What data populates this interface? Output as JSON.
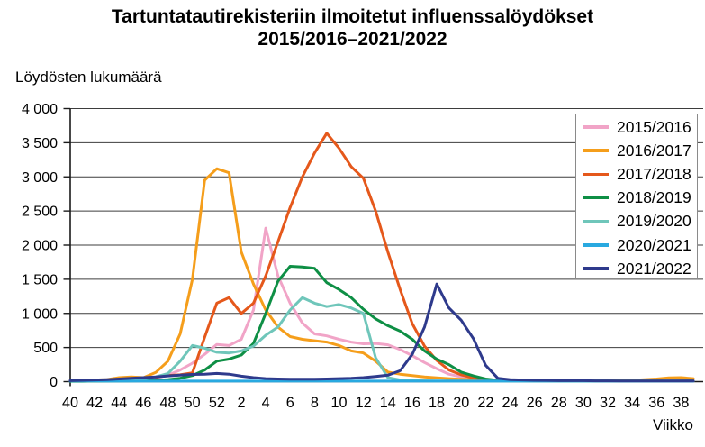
{
  "title": {
    "line1": "Tartuntatautirekisteriin ilmoitetut influenssalöydökset",
    "line2": "2015/2016–2021/2022"
  },
  "chart_data": {
    "type": "line",
    "title": "Tartuntatautirekisteriin ilmoitetut influenssalöydökset 2015/2016–2021/2022",
    "ylabel": "Löydösten lukumäärä",
    "xlabel": "Viikko",
    "ylim": [
      0,
      4000
    ],
    "ytick_interval": 500,
    "ytick_labels": [
      "0",
      "500",
      "1 000",
      "1 500",
      "2 000",
      "2 500",
      "3 000",
      "3 500",
      "4 000"
    ],
    "grid": "horizontal",
    "grid_color": "#3d3d3d",
    "axis_color": "#1a1a1a",
    "legend_position": "top-right",
    "weeks": [
      40,
      41,
      42,
      43,
      44,
      45,
      46,
      47,
      48,
      49,
      50,
      51,
      52,
      1,
      2,
      3,
      4,
      5,
      6,
      7,
      8,
      9,
      10,
      11,
      12,
      13,
      14,
      15,
      16,
      17,
      18,
      19,
      20,
      21,
      22,
      23,
      24,
      25,
      26,
      27,
      28,
      29,
      30,
      31,
      32,
      33,
      34,
      35,
      36,
      37,
      38,
      39
    ],
    "xtick_labels": [
      "40",
      "42",
      "44",
      "46",
      "48",
      "50",
      "52",
      "2",
      "4",
      "6",
      "8",
      "10",
      "12",
      "14",
      "16",
      "18",
      "20",
      "22",
      "24",
      "26",
      "28",
      "30",
      "32",
      "34",
      "36",
      "38"
    ],
    "series": [
      {
        "name": "2015/2016",
        "color": "#F1A4C7",
        "values": [
          10,
          10,
          15,
          15,
          20,
          25,
          35,
          55,
          95,
          170,
          270,
          400,
          545,
          530,
          620,
          1050,
          2250,
          1550,
          1150,
          860,
          700,
          670,
          620,
          580,
          555,
          560,
          540,
          470,
          380,
          280,
          190,
          110,
          70,
          45,
          30,
          20,
          15,
          12,
          10,
          10,
          8,
          8,
          8,
          8,
          8,
          8,
          8,
          8,
          8,
          8,
          8,
          8
        ]
      },
      {
        "name": "2016/2017",
        "color": "#F59E1B",
        "values": [
          15,
          20,
          25,
          30,
          60,
          70,
          60,
          135,
          300,
          700,
          1500,
          2950,
          3120,
          3060,
          1900,
          1430,
          1050,
          800,
          660,
          620,
          600,
          580,
          530,
          450,
          420,
          300,
          140,
          110,
          90,
          70,
          55,
          45,
          35,
          30,
          25,
          20,
          18,
          15,
          15,
          12,
          12,
          10,
          10,
          10,
          12,
          15,
          20,
          30,
          40,
          55,
          60,
          45
        ]
      },
      {
        "name": "2017/2018",
        "color": "#E5581B",
        "values": [
          8,
          10,
          12,
          15,
          20,
          30,
          45,
          65,
          90,
          100,
          130,
          650,
          1150,
          1230,
          1000,
          1150,
          1550,
          2050,
          2550,
          3000,
          3350,
          3640,
          3420,
          3150,
          2980,
          2500,
          1900,
          1350,
          850,
          520,
          310,
          170,
          100,
          55,
          30,
          20,
          15,
          12,
          10,
          10,
          10,
          8,
          8,
          8,
          8,
          8,
          8,
          8,
          10,
          10,
          12,
          15
        ]
      },
      {
        "name": "2018/2019",
        "color": "#0E8F45",
        "values": [
          5,
          5,
          8,
          8,
          10,
          12,
          15,
          20,
          30,
          50,
          90,
          170,
          300,
          330,
          390,
          560,
          1000,
          1470,
          1690,
          1680,
          1660,
          1450,
          1350,
          1230,
          1060,
          920,
          820,
          740,
          620,
          450,
          330,
          250,
          140,
          85,
          40,
          20,
          12,
          10,
          8,
          8,
          8,
          8,
          8,
          8,
          8,
          8,
          8,
          8,
          8,
          8,
          8,
          8
        ]
      },
      {
        "name": "2019/2020",
        "color": "#6FC6BA",
        "values": [
          10,
          10,
          12,
          15,
          18,
          25,
          40,
          70,
          120,
          300,
          530,
          490,
          430,
          420,
          450,
          520,
          680,
          800,
          1050,
          1230,
          1150,
          1100,
          1130,
          1080,
          1000,
          350,
          60,
          25,
          15,
          12,
          10,
          10,
          10,
          8,
          8,
          8,
          8,
          8,
          8,
          8,
          8,
          8,
          8,
          8,
          8,
          8,
          8,
          8,
          8,
          8,
          8,
          8
        ]
      },
      {
        "name": "2020/2021",
        "color": "#29A9E0",
        "values": [
          10,
          10,
          10,
          8,
          8,
          8,
          8,
          8,
          8,
          8,
          8,
          8,
          8,
          8,
          8,
          8,
          8,
          8,
          8,
          8,
          8,
          8,
          8,
          8,
          8,
          8,
          8,
          8,
          8,
          8,
          8,
          8,
          8,
          8,
          8,
          8,
          8,
          8,
          8,
          8,
          8,
          8,
          8,
          8,
          8,
          8,
          8,
          8,
          8,
          8,
          8,
          8
        ]
      },
      {
        "name": "2021/2022",
        "color": "#2E3A8C",
        "values": [
          15,
          20,
          25,
          30,
          40,
          50,
          60,
          70,
          85,
          95,
          105,
          110,
          120,
          110,
          80,
          60,
          45,
          40,
          35,
          35,
          35,
          40,
          45,
          50,
          60,
          75,
          95,
          160,
          400,
          800,
          1430,
          1080,
          900,
          630,
          240,
          50,
          30,
          25,
          20,
          18,
          15,
          15,
          15,
          12,
          12,
          10,
          10,
          10,
          10,
          10,
          10,
          10
        ]
      }
    ]
  }
}
